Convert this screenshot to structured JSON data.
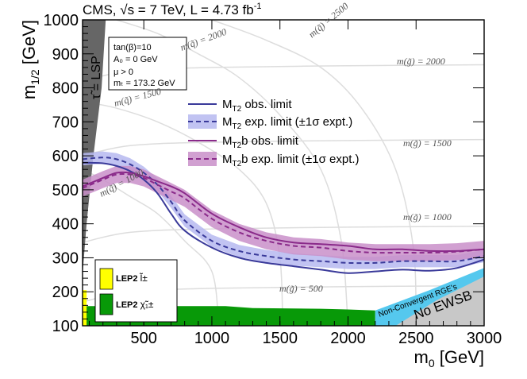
{
  "chart_data": {
    "type": "line",
    "title": "CMS, √s = 7 TeV, L = 4.73 fb⁻¹",
    "header_parts": {
      "experiment": "CMS, ",
      "sqrt": "√",
      "energy": "s = 7 TeV, L = 4.73 fb",
      "lumi_exp": "-1"
    },
    "xlabel": {
      "base": "m",
      "sub": "0",
      "unit": " [GeV]"
    },
    "ylabel": {
      "base": "m",
      "sub": "1/2",
      "unit": " [GeV]"
    },
    "xlim": [
      50,
      3000
    ],
    "ylim": [
      100,
      1000
    ],
    "xticks": [
      500,
      1000,
      1500,
      2000,
      2500,
      3000
    ],
    "yticks": [
      100,
      200,
      300,
      400,
      500,
      600,
      700,
      800,
      900,
      1000
    ],
    "parameters": [
      "tan(β)=10",
      "A₀ = 0 GeV",
      "μ > 0",
      "mₜ = 173.2 GeV"
    ],
    "series": [
      {
        "name": "M_T2 obs. limit",
        "legend": {
          "a": "M",
          "sub": "T2",
          "b": " obs. limit"
        },
        "color": "#3a3a9a",
        "style": "solid",
        "x": [
          50,
          200,
          300,
          400,
          500,
          600,
          700,
          800,
          1000,
          1200,
          1400,
          1600,
          1800,
          2000,
          2200,
          2400,
          2600,
          2800,
          3000
        ],
        "y": [
          580,
          578,
          570,
          555,
          530,
          490,
          430,
          380,
          330,
          300,
          285,
          275,
          265,
          255,
          260,
          265,
          262,
          270,
          295
        ]
      },
      {
        "name": "M_T2 exp. limit (±1σ expt.)",
        "legend": {
          "a": "M",
          "sub": "T2",
          "b": " exp. limit (±1σ expt.)"
        },
        "color": "#3a3a9a",
        "band_color": "#b6b9f0",
        "style": "dashed",
        "x": [
          50,
          200,
          300,
          400,
          500,
          600,
          700,
          800,
          1000,
          1200,
          1400,
          1600,
          1800,
          2000,
          2200,
          2400,
          2600,
          2800,
          3000
        ],
        "y": [
          590,
          595,
          590,
          575,
          550,
          515,
          465,
          410,
          350,
          320,
          305,
          295,
          290,
          285,
          285,
          290,
          290,
          290,
          305
        ],
        "band_width": 18
      },
      {
        "name": "M_T2b obs. limit",
        "legend": {
          "a": "M",
          "sub": "T2",
          "b": "b obs. limit"
        },
        "color": "#8a2a8a",
        "style": "solid",
        "x": [
          50,
          200,
          300,
          400,
          500,
          600,
          700,
          800,
          1000,
          1200,
          1400,
          1600,
          1800,
          2000,
          2200,
          2400,
          2600,
          2800,
          3000
        ],
        "y": [
          510,
          535,
          550,
          550,
          540,
          525,
          510,
          490,
          430,
          390,
          360,
          345,
          340,
          335,
          325,
          325,
          320,
          320,
          325
        ]
      },
      {
        "name": "M_T2b exp. limit (±1σ expt.)",
        "legend": {
          "a": "M",
          "sub": "T2",
          "b": "b exp. limit (±1σ expt.)"
        },
        "color": "#8a2a8a",
        "band_color": "#c98fc9",
        "style": "dashed",
        "x": [
          50,
          200,
          300,
          400,
          500,
          600,
          700,
          800,
          1000,
          1200,
          1400,
          1600,
          1800,
          2000,
          2200,
          2400,
          2600,
          2800,
          3000
        ],
        "y": [
          505,
          530,
          545,
          545,
          535,
          515,
          495,
          475,
          415,
          375,
          350,
          335,
          330,
          320,
          315,
          315,
          315,
          318,
          325
        ],
        "band_width": 25
      }
    ],
    "squark_contours": [
      {
        "label": "m(q̃) = 1000"
      },
      {
        "label": "m(q̃) = 1500"
      },
      {
        "label": "m(q̃) = 2000"
      },
      {
        "label": "m(q̃) = 2500"
      }
    ],
    "gluino_contours": [
      {
        "label": "m(g̃) = 500"
      },
      {
        "label": "m(g̃) = 1000"
      },
      {
        "label": "m(g̃) = 1500"
      },
      {
        "label": "m(g̃) = 2000"
      }
    ],
    "lep2": [
      {
        "label": "LEP2",
        "particle": "l̃±",
        "color": "#ffff00"
      },
      {
        "label": "LEP2",
        "particle": "χ̃₁±",
        "color": "#009900"
      }
    ],
    "regions": {
      "stau_lsp": "τ̃ = LSP",
      "non_convergent": "Non-Convergent RGE's",
      "no_ewsb": "No EWSB"
    },
    "colors": {
      "stau_region": "#666666",
      "lep2_chargino": "#089908",
      "lep2_slepton": "#ffff00",
      "non_convergent": "#55c8ee",
      "no_ewsb": "#c8c8c8",
      "contours": "#dddddd"
    }
  }
}
